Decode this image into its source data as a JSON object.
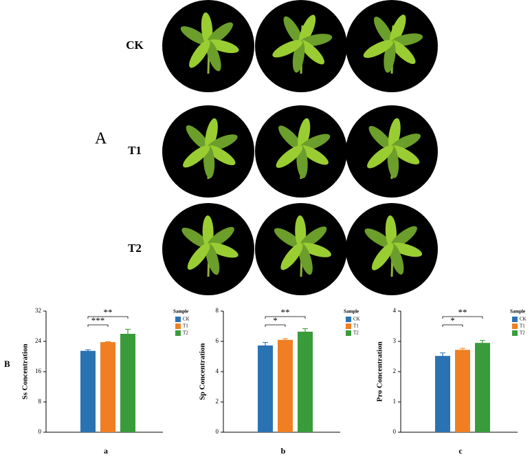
{
  "figure": {
    "panel_A": "A",
    "panel_B": "B",
    "rows": [
      "CK",
      "T1",
      "T2"
    ]
  },
  "chart_data": [
    {
      "type": "bar",
      "sublabel": "a",
      "ylabel": "Ss Concentration",
      "legend_title": "Sample",
      "ylim": [
        0,
        32
      ],
      "yticks": [
        0,
        8,
        16,
        24,
        32
      ],
      "series": [
        {
          "name": "CK",
          "color": "#2a73b3",
          "values": [
            21.5
          ],
          "errors": [
            0.3
          ]
        },
        {
          "name": "T1",
          "color": "#f07f23",
          "values": [
            23.8
          ],
          "errors": [
            0.1
          ]
        },
        {
          "name": "T2",
          "color": "#3a9b3a",
          "values": [
            26.0
          ],
          "errors": [
            1.2
          ]
        }
      ],
      "annotations": [
        "***",
        "**"
      ]
    },
    {
      "type": "bar",
      "sublabel": "b",
      "ylabel": "Sp Concentration",
      "legend_title": "Sample",
      "ylim": [
        0,
        8
      ],
      "yticks": [
        0,
        2,
        4,
        6,
        8
      ],
      "series": [
        {
          "name": "CK",
          "color": "#2a73b3",
          "values": [
            5.73
          ],
          "errors": [
            0.2
          ]
        },
        {
          "name": "T1",
          "color": "#f07f23",
          "values": [
            6.1
          ],
          "errors": [
            0.08
          ]
        },
        {
          "name": "T2",
          "color": "#3a9b3a",
          "values": [
            6.64
          ],
          "errors": [
            0.2
          ]
        }
      ],
      "annotations": [
        "*",
        "**"
      ]
    },
    {
      "type": "bar",
      "sublabel": "c",
      "ylabel": "Pro Concentration",
      "legend_title": "Sample",
      "ylim": [
        0,
        4
      ],
      "yticks": [
        0,
        1,
        2,
        3,
        4
      ],
      "series": [
        {
          "name": "CK",
          "color": "#2a73b3",
          "values": [
            2.52
          ],
          "errors": [
            0.1
          ]
        },
        {
          "name": "T1",
          "color": "#f07f23",
          "values": [
            2.72
          ],
          "errors": [
            0.05
          ]
        },
        {
          "name": "T2",
          "color": "#3a9b3a",
          "values": [
            2.95
          ],
          "errors": [
            0.08
          ]
        }
      ],
      "annotations": [
        "*",
        "**"
      ]
    }
  ]
}
